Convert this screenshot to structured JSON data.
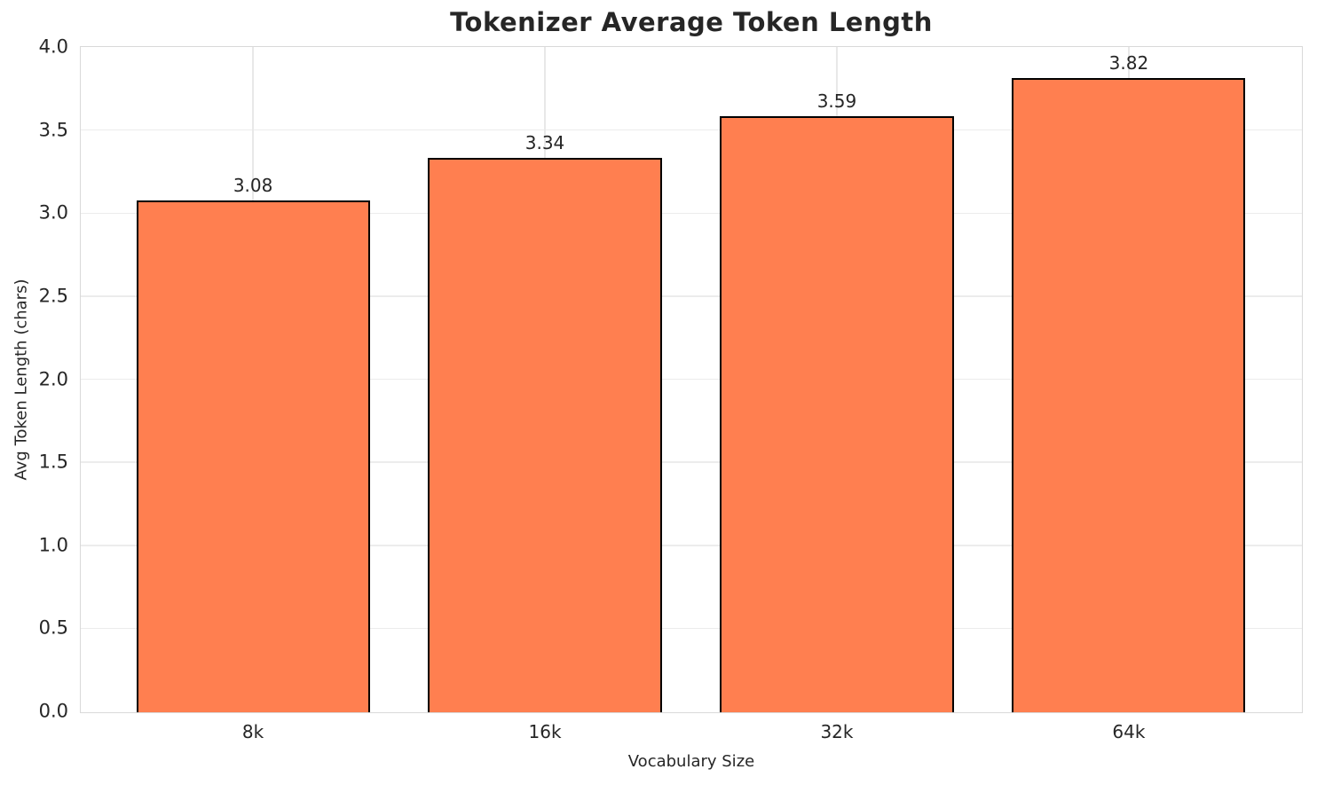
{
  "chart_data": {
    "type": "bar",
    "title": "Tokenizer Average Token Length",
    "xlabel": "Vocabulary Size",
    "ylabel": "Avg Token Length (chars)",
    "categories": [
      "8k",
      "16k",
      "32k",
      "64k"
    ],
    "values": [
      3.08,
      3.34,
      3.59,
      3.82
    ],
    "value_labels": [
      "3.08",
      "3.34",
      "3.59",
      "3.82"
    ],
    "y_ticks": [
      "0.0",
      "0.5",
      "1.0",
      "1.5",
      "2.0",
      "2.5",
      "3.0",
      "3.5",
      "4.0"
    ],
    "ylim": [
      0.0,
      4.0
    ],
    "grid": true,
    "legend": "none",
    "colors": {
      "bar_fill": "#FF7F50",
      "bar_edge": "#000000",
      "grid_h": "#ececec",
      "grid_v": "#e8e8e8",
      "spine": "#d9d9d9",
      "text": "#262626",
      "background": "#ffffff"
    }
  }
}
